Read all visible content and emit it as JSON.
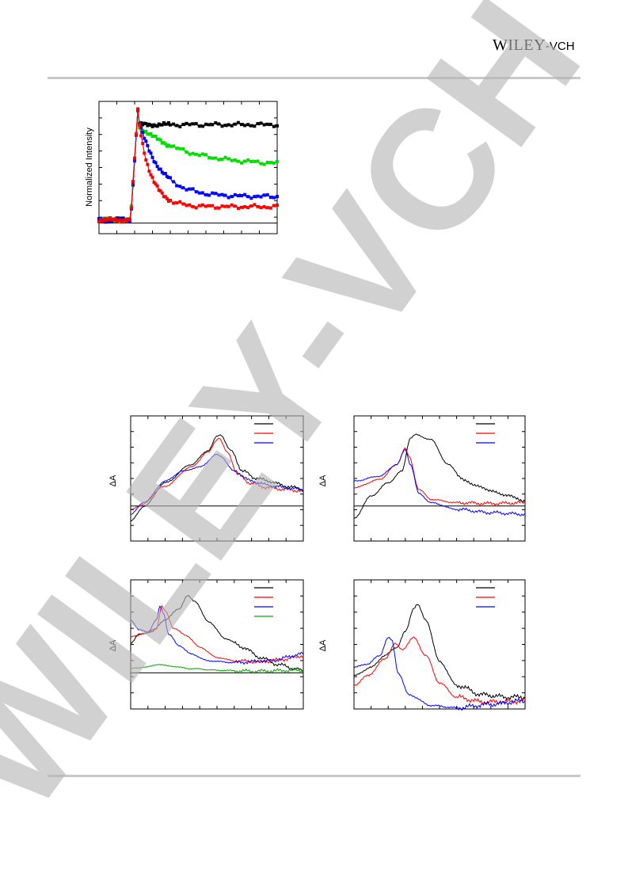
{
  "header": {
    "publisher_main": "WILEY",
    "publisher_sep": "-",
    "publisher_sub": "VCH"
  },
  "watermark": {
    "text": "WILEY-VCH"
  },
  "chart_data": [
    {
      "id": "kinetics",
      "type": "scatter",
      "ylabel": "Normalized Intensity",
      "xlim": [
        -2,
        20
      ],
      "ylim": [
        -0.1,
        1.15
      ],
      "axis_box": [
        125,
        128,
        350,
        295
      ],
      "zero_line": true,
      "rise_time": 2.5,
      "series": [
        {
          "color": "#000000",
          "plateau": 0.93,
          "decay": 0.0,
          "tau": 1
        },
        {
          "color": "#00dd00",
          "plateau": 0.55,
          "decay": 0.37,
          "tau": 5.5
        },
        {
          "color": "#0000ff",
          "plateau": 0.25,
          "decay": 0.72,
          "tau": 2.6
        },
        {
          "color": "#ff0000",
          "plateau": 0.155,
          "decay": 0.83,
          "tau": 1.5
        }
      ]
    },
    {
      "id": "spectra-a",
      "type": "line",
      "ylabel": "ΔA",
      "axis_box": [
        165,
        525,
        383,
        683
      ],
      "zero_line": true,
      "legend": [
        {
          "color": "#000000"
        },
        {
          "color": "#ff0000"
        },
        {
          "color": "#0000ff"
        }
      ],
      "series": [
        {
          "color": "#000000",
          "points": [
            [
              0,
              -0.18
            ],
            [
              0.08,
              0.0
            ],
            [
              0.2,
              0.28
            ],
            [
              0.35,
              0.5
            ],
            [
              0.45,
              0.67
            ],
            [
              0.5,
              0.84
            ],
            [
              0.52,
              0.86
            ],
            [
              0.58,
              0.67
            ],
            [
              0.65,
              0.42
            ],
            [
              0.72,
              0.34
            ],
            [
              0.8,
              0.3
            ],
            [
              0.9,
              0.24
            ],
            [
              1.0,
              0.2
            ]
          ]
        },
        {
          "color": "#ff0000",
          "points": [
            [
              0,
              -0.04
            ],
            [
              0.05,
              0.0
            ],
            [
              0.2,
              0.24
            ],
            [
              0.35,
              0.47
            ],
            [
              0.45,
              0.65
            ],
            [
              0.5,
              0.8
            ],
            [
              0.51,
              0.82
            ],
            [
              0.56,
              0.65
            ],
            [
              0.62,
              0.38
            ],
            [
              0.7,
              0.27
            ],
            [
              0.8,
              0.22
            ],
            [
              0.9,
              0.2
            ],
            [
              1.0,
              0.18
            ]
          ]
        },
        {
          "color": "#0000ff",
          "points": [
            [
              0,
              -0.1
            ],
            [
              0.08,
              0.05
            ],
            [
              0.2,
              0.3
            ],
            [
              0.3,
              0.42
            ],
            [
              0.4,
              0.47
            ],
            [
              0.5,
              0.62
            ],
            [
              0.52,
              0.6
            ],
            [
              0.6,
              0.42
            ],
            [
              0.7,
              0.3
            ],
            [
              0.8,
              0.25
            ],
            [
              0.9,
              0.22
            ],
            [
              1.0,
              0.2
            ]
          ]
        }
      ]
    },
    {
      "id": "spectra-b",
      "type": "line",
      "ylabel": "ΔA",
      "axis_box": [
        447,
        525,
        663,
        683
      ],
      "zero_line": true,
      "legend": [
        {
          "color": "#000000"
        },
        {
          "color": "#ff0000"
        },
        {
          "color": "#0000ff"
        }
      ],
      "series": [
        {
          "color": "#000000",
          "points": [
            [
              0,
              -0.15
            ],
            [
              0.1,
              0.12
            ],
            [
              0.2,
              0.28
            ],
            [
              0.28,
              0.42
            ],
            [
              0.33,
              0.82
            ],
            [
              0.36,
              0.86
            ],
            [
              0.45,
              0.8
            ],
            [
              0.55,
              0.5
            ],
            [
              0.65,
              0.3
            ],
            [
              0.75,
              0.22
            ],
            [
              0.85,
              0.15
            ],
            [
              0.95,
              0.1
            ],
            [
              1.0,
              0.05
            ]
          ]
        },
        {
          "color": "#ff0000",
          "points": [
            [
              0,
              0.22
            ],
            [
              0.15,
              0.32
            ],
            [
              0.25,
              0.5
            ],
            [
              0.3,
              0.7
            ],
            [
              0.32,
              0.6
            ],
            [
              0.38,
              0.2
            ],
            [
              0.45,
              0.08
            ],
            [
              0.6,
              0.04
            ],
            [
              0.8,
              0.03
            ],
            [
              1.0,
              0.04
            ]
          ]
        },
        {
          "color": "#0000ff",
          "points": [
            [
              0,
              0.3
            ],
            [
              0.15,
              0.36
            ],
            [
              0.25,
              0.5
            ],
            [
              0.3,
              0.68
            ],
            [
              0.33,
              0.5
            ],
            [
              0.38,
              0.15
            ],
            [
              0.45,
              0.04
            ],
            [
              0.6,
              -0.04
            ],
            [
              0.8,
              -0.08
            ],
            [
              1.0,
              -0.1
            ]
          ]
        }
      ]
    },
    {
      "id": "spectra-c",
      "type": "line",
      "ylabel": "ΔA",
      "axis_box": [
        165,
        732,
        383,
        895
      ],
      "zero_line": true,
      "legend": [
        {
          "color": "#000000"
        },
        {
          "color": "#ff0000"
        },
        {
          "color": "#0000ff"
        },
        {
          "color": "#00aa00"
        }
      ],
      "series": [
        {
          "color": "#000000",
          "points": [
            [
              0,
              0.35
            ],
            [
              0.05,
              0.45
            ],
            [
              0.12,
              0.48
            ],
            [
              0.2,
              0.62
            ],
            [
              0.28,
              0.75
            ],
            [
              0.33,
              0.9
            ],
            [
              0.37,
              0.84
            ],
            [
              0.45,
              0.6
            ],
            [
              0.55,
              0.4
            ],
            [
              0.65,
              0.3
            ],
            [
              0.75,
              0.18
            ],
            [
              0.85,
              0.1
            ],
            [
              0.95,
              0.05
            ],
            [
              1.0,
              0.02
            ]
          ]
        },
        {
          "color": "#ff0000",
          "points": [
            [
              0,
              0.42
            ],
            [
              0.08,
              0.46
            ],
            [
              0.15,
              0.52
            ],
            [
              0.18,
              0.78
            ],
            [
              0.2,
              0.72
            ],
            [
              0.25,
              0.52
            ],
            [
              0.32,
              0.44
            ],
            [
              0.4,
              0.3
            ],
            [
              0.5,
              0.18
            ],
            [
              0.6,
              0.14
            ],
            [
              0.75,
              0.13
            ],
            [
              0.9,
              0.16
            ],
            [
              1.0,
              0.2
            ]
          ]
        },
        {
          "color": "#0000ff",
          "points": [
            [
              0,
              0.62
            ],
            [
              0.05,
              0.5
            ],
            [
              0.1,
              0.48
            ],
            [
              0.15,
              0.62
            ],
            [
              0.17,
              0.78
            ],
            [
              0.19,
              0.7
            ],
            [
              0.22,
              0.45
            ],
            [
              0.28,
              0.32
            ],
            [
              0.35,
              0.22
            ],
            [
              0.45,
              0.14
            ],
            [
              0.6,
              0.12
            ],
            [
              0.8,
              0.14
            ],
            [
              1.0,
              0.22
            ]
          ]
        },
        {
          "color": "#00aa00",
          "points": [
            [
              0,
              0.05
            ],
            [
              0.1,
              0.07
            ],
            [
              0.16,
              0.1
            ],
            [
              0.22,
              0.08
            ],
            [
              0.35,
              0.05
            ],
            [
              0.5,
              0.03
            ],
            [
              0.7,
              0.02
            ],
            [
              1.0,
              0.03
            ]
          ]
        }
      ]
    },
    {
      "id": "spectra-d",
      "type": "line",
      "ylabel": "ΔA",
      "axis_box": [
        447,
        732,
        663,
        895
      ],
      "zero_line": false,
      "legend": [
        {
          "color": "#000000"
        },
        {
          "color": "#ff0000"
        },
        {
          "color": "#0000ff"
        }
      ],
      "series": [
        {
          "color": "#000000",
          "points": [
            [
              0,
              0.28
            ],
            [
              0.1,
              0.35
            ],
            [
              0.18,
              0.45
            ],
            [
              0.25,
              0.52
            ],
            [
              0.3,
              0.65
            ],
            [
              0.35,
              0.85
            ],
            [
              0.37,
              0.88
            ],
            [
              0.42,
              0.75
            ],
            [
              0.5,
              0.4
            ],
            [
              0.6,
              0.2
            ],
            [
              0.75,
              0.12
            ],
            [
              0.9,
              0.1
            ],
            [
              1.0,
              0.1
            ]
          ]
        },
        {
          "color": "#ff0000",
          "points": [
            [
              0,
              0.2
            ],
            [
              0.08,
              0.28
            ],
            [
              0.18,
              0.42
            ],
            [
              0.24,
              0.55
            ],
            [
              0.28,
              0.5
            ],
            [
              0.35,
              0.6
            ],
            [
              0.42,
              0.45
            ],
            [
              0.5,
              0.22
            ],
            [
              0.6,
              0.1
            ],
            [
              0.75,
              0.06
            ],
            [
              0.9,
              0.06
            ],
            [
              1.0,
              0.07
            ]
          ]
        },
        {
          "color": "#0000ff",
          "points": [
            [
              0,
              0.35
            ],
            [
              0.08,
              0.38
            ],
            [
              0.15,
              0.45
            ],
            [
              0.2,
              0.6
            ],
            [
              0.22,
              0.58
            ],
            [
              0.26,
              0.3
            ],
            [
              0.32,
              0.12
            ],
            [
              0.45,
              0.03
            ],
            [
              0.6,
              0.01
            ],
            [
              0.8,
              0.04
            ],
            [
              1.0,
              0.07
            ]
          ]
        }
      ]
    }
  ]
}
